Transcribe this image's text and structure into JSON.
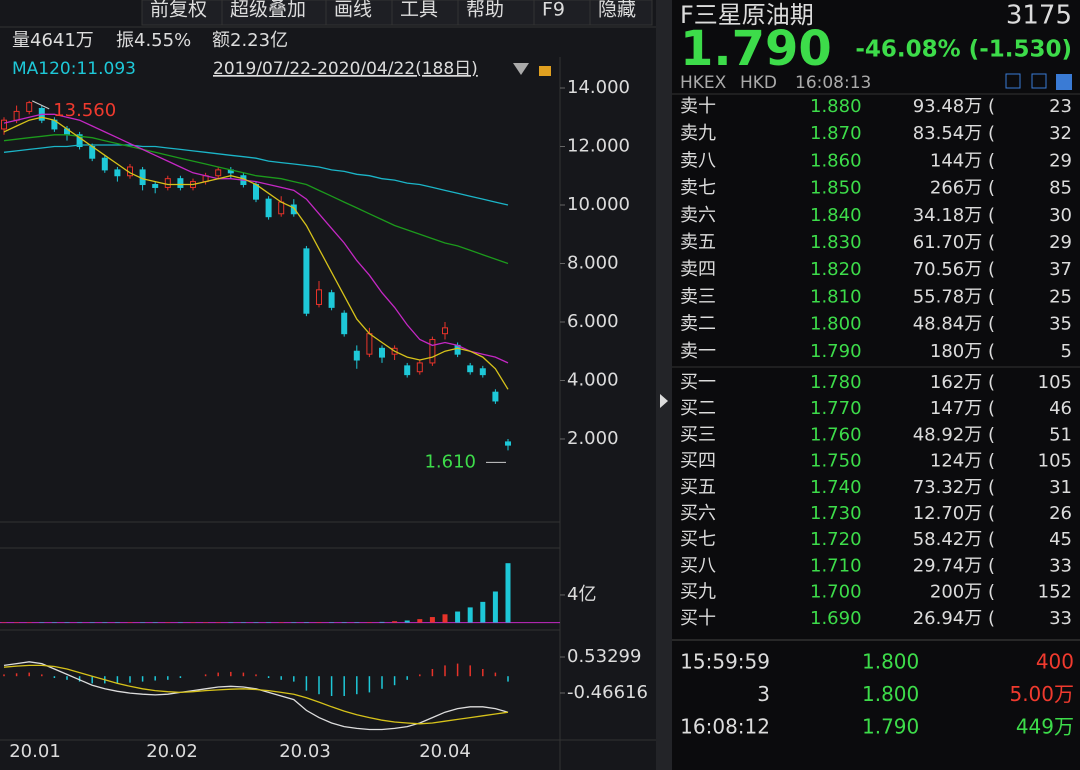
{
  "toolbar": [
    "前复权",
    "超级叠加",
    "画线",
    "工具",
    "帮助",
    "F9",
    "隐藏"
  ],
  "info": {
    "volume": "量4641万",
    "amplitude": "振4.55%",
    "amount": "额2.23亿",
    "ma_label": "MA120:11.093",
    "range": "2019/07/22-2020/04/22(188日)"
  },
  "price_chart": {
    "ylim": [
      -0.77,
      15.06
    ],
    "yticks": [
      {
        "value": 14,
        "label": "14.000"
      },
      {
        "value": 12,
        "label": "12.000"
      },
      {
        "value": 10,
        "label": "10.000"
      },
      {
        "value": 8,
        "label": "8.000"
      },
      {
        "value": 6,
        "label": "6.000"
      },
      {
        "value": 4,
        "label": "4.000"
      },
      {
        "value": 2,
        "label": "2.000"
      }
    ],
    "high_label": "13.560",
    "low_label": "1.610",
    "up_color": "#e8332a",
    "down_color": "#1ec8d8",
    "candles": [
      [
        12.6,
        12.9,
        13.0,
        12.4
      ],
      [
        12.9,
        13.2,
        13.4,
        12.8
      ],
      [
        13.2,
        13.5,
        13.56,
        13.1
      ],
      [
        13.3,
        12.9,
        13.4,
        12.8
      ],
      [
        12.9,
        12.6,
        13.0,
        12.5
      ],
      [
        12.6,
        12.4,
        12.7,
        12.2
      ],
      [
        12.4,
        12.0,
        12.5,
        11.9
      ],
      [
        12.0,
        11.6,
        12.1,
        11.5
      ],
      [
        11.6,
        11.2,
        11.7,
        11.1
      ],
      [
        11.2,
        11.0,
        11.3,
        10.8
      ],
      [
        11.0,
        11.3,
        11.4,
        10.9
      ],
      [
        11.2,
        10.7,
        11.3,
        10.5
      ],
      [
        10.7,
        10.6,
        10.8,
        10.4
      ],
      [
        10.6,
        10.9,
        11.0,
        10.5
      ],
      [
        10.9,
        10.6,
        11.0,
        10.5
      ],
      [
        10.6,
        10.8,
        10.9,
        10.5
      ],
      [
        10.8,
        11.0,
        11.1,
        10.7
      ],
      [
        11.0,
        11.2,
        11.3,
        10.9
      ],
      [
        11.2,
        11.1,
        11.3,
        10.9
      ],
      [
        11.0,
        10.7,
        11.1,
        10.6
      ],
      [
        10.7,
        10.2,
        10.8,
        10.1
      ],
      [
        10.2,
        9.6,
        10.3,
        9.5
      ],
      [
        9.7,
        10.1,
        10.3,
        9.6
      ],
      [
        10.0,
        9.7,
        10.2,
        9.6
      ],
      [
        8.5,
        6.3,
        8.6,
        6.2
      ],
      [
        6.6,
        7.1,
        7.4,
        6.5
      ],
      [
        7.0,
        6.5,
        7.1,
        6.4
      ],
      [
        6.3,
        5.6,
        6.4,
        5.5
      ],
      [
        5.0,
        4.7,
        5.2,
        4.4
      ],
      [
        4.9,
        5.6,
        5.8,
        4.8
      ],
      [
        5.1,
        4.8,
        5.2,
        4.6
      ],
      [
        4.9,
        5.1,
        5.2,
        4.7
      ],
      [
        4.5,
        4.2,
        4.6,
        4.1
      ],
      [
        4.3,
        4.6,
        4.7,
        4.2
      ],
      [
        4.6,
        5.4,
        5.5,
        4.5
      ],
      [
        5.6,
        5.8,
        6.0,
        5.4
      ],
      [
        5.2,
        4.9,
        5.3,
        4.8
      ],
      [
        4.5,
        4.3,
        4.6,
        4.2
      ],
      [
        4.4,
        4.2,
        4.5,
        4.1
      ],
      [
        3.6,
        3.3,
        3.7,
        3.2
      ],
      [
        1.9,
        1.79,
        2.0,
        1.61
      ]
    ],
    "ma": [
      {
        "color": "#1bb5c8",
        "values": [
          11.8,
          11.85,
          11.9,
          11.95,
          12.0,
          12.0,
          12.05,
          12.05,
          12.05,
          12.05,
          12.05,
          12.0,
          12.0,
          11.95,
          11.9,
          11.85,
          11.8,
          11.75,
          11.7,
          11.65,
          11.6,
          11.5,
          11.45,
          11.4,
          11.35,
          11.3,
          11.2,
          11.15,
          11.05,
          11.0,
          10.9,
          10.85,
          10.75,
          10.7,
          10.6,
          10.5,
          10.4,
          10.3,
          10.2,
          10.1,
          10.0
        ]
      },
      {
        "color": "#1c9a1c",
        "values": [
          12.2,
          12.25,
          12.3,
          12.35,
          12.4,
          12.4,
          12.35,
          12.3,
          12.2,
          12.1,
          12.0,
          11.9,
          11.8,
          11.7,
          11.6,
          11.5,
          11.4,
          11.3,
          11.2,
          11.1,
          11.0,
          10.95,
          10.9,
          10.8,
          10.7,
          10.5,
          10.3,
          10.1,
          9.9,
          9.7,
          9.5,
          9.3,
          9.15,
          9.0,
          8.85,
          8.7,
          8.6,
          8.45,
          8.3,
          8.15,
          8.0
        ]
      },
      {
        "color": "#c428c4",
        "values": [
          12.8,
          12.9,
          13.0,
          13.1,
          13.1,
          13.0,
          12.9,
          12.7,
          12.5,
          12.3,
          12.1,
          11.9,
          11.7,
          11.5,
          11.3,
          11.1,
          11.0,
          10.9,
          10.9,
          10.85,
          10.8,
          10.7,
          10.6,
          10.5,
          10.2,
          9.7,
          9.2,
          8.7,
          8.1,
          7.6,
          7.0,
          6.5,
          5.9,
          5.4,
          5.2,
          5.3,
          5.2,
          5.0,
          4.9,
          4.8,
          4.6
        ]
      },
      {
        "color": "#d6c21a",
        "values": [
          12.5,
          12.7,
          12.9,
          13.0,
          12.9,
          12.6,
          12.3,
          12.0,
          11.7,
          11.4,
          11.1,
          10.9,
          10.8,
          10.7,
          10.7,
          10.7,
          10.8,
          10.9,
          11.0,
          10.9,
          10.7,
          10.4,
          10.1,
          9.9,
          9.3,
          8.5,
          7.7,
          6.9,
          6.1,
          5.6,
          5.3,
          5.0,
          4.8,
          4.7,
          4.8,
          5.0,
          5.1,
          5.0,
          4.8,
          4.4,
          3.7
        ]
      }
    ],
    "x_labels": [
      "20.01",
      "20.02",
      "20.03",
      "20.04"
    ]
  },
  "volume_chart": {
    "ylim": [
      -0.35,
      10.8
    ],
    "yticks": [
      {
        "value": 4,
        "label": "4亿"
      }
    ],
    "values": [
      0.02,
      0.02,
      0.02,
      0.02,
      0.02,
      0.02,
      0.02,
      0.02,
      0.02,
      0.02,
      0.02,
      0.02,
      0.02,
      0.02,
      0.02,
      0.02,
      0.02,
      0.02,
      0.02,
      0.02,
      0.02,
      0.02,
      0.02,
      0.02,
      0.05,
      0.05,
      0.05,
      0.05,
      0.05,
      0.05,
      0.1,
      0.2,
      0.3,
      0.5,
      0.8,
      1.2,
      1.6,
      2.2,
      3.0,
      4.5,
      8.6
    ]
  },
  "macd_chart": {
    "ylim": [
      -1.771,
      1.227
    ],
    "yticks": [
      {
        "value": 0.53299,
        "label": "0.53299"
      },
      {
        "value": -0.46616,
        "label": "-0.46616"
      }
    ],
    "histogram": [
      0.05,
      0.08,
      0.1,
      0.05,
      -0.05,
      -0.1,
      -0.15,
      -0.2,
      -0.2,
      -0.2,
      -0.18,
      -0.15,
      -0.12,
      -0.1,
      -0.05,
      0.0,
      0.05,
      0.1,
      0.12,
      0.1,
      0.05,
      -0.05,
      -0.1,
      -0.15,
      -0.4,
      -0.5,
      -0.55,
      -0.55,
      -0.5,
      -0.45,
      -0.35,
      -0.25,
      -0.1,
      0.05,
      0.2,
      0.3,
      0.35,
      0.3,
      0.2,
      0.1,
      -0.15
    ],
    "lines": [
      {
        "color": "#dddddd",
        "values": [
          0.3,
          0.35,
          0.4,
          0.35,
          0.2,
          0.05,
          -0.1,
          -0.25,
          -0.35,
          -0.42,
          -0.47,
          -0.5,
          -0.52,
          -0.5,
          -0.45,
          -0.4,
          -0.35,
          -0.3,
          -0.28,
          -0.3,
          -0.35,
          -0.45,
          -0.55,
          -0.65,
          -0.95,
          -1.15,
          -1.3,
          -1.4,
          -1.45,
          -1.48,
          -1.48,
          -1.45,
          -1.4,
          -1.3,
          -1.15,
          -1.0,
          -0.9,
          -0.85,
          -0.85,
          -0.9,
          -1.0
        ]
      },
      {
        "color": "#d6c21a",
        "values": [
          0.25,
          0.28,
          0.3,
          0.3,
          0.27,
          0.2,
          0.1,
          0.0,
          -0.1,
          -0.2,
          -0.28,
          -0.35,
          -0.4,
          -0.43,
          -0.45,
          -0.43,
          -0.4,
          -0.38,
          -0.36,
          -0.35,
          -0.37,
          -0.4,
          -0.45,
          -0.5,
          -0.6,
          -0.72,
          -0.85,
          -0.97,
          -1.07,
          -1.15,
          -1.22,
          -1.27,
          -1.3,
          -1.32,
          -1.3,
          -1.25,
          -1.2,
          -1.15,
          -1.1,
          -1.05,
          -1.0
        ]
      }
    ]
  },
  "quote": {
    "name": "F三星原油期",
    "code": "3175",
    "price": "1.790",
    "change": "-46.08% (-1.530)",
    "exchange": "HKEX",
    "currency": "HKD",
    "time": "16:08:13"
  },
  "asks": [
    [
      "卖十",
      "1.880",
      "93.48万 (",
      "23"
    ],
    [
      "卖九",
      "1.870",
      "83.54万 (",
      "32"
    ],
    [
      "卖八",
      "1.860",
      "144万 (",
      "29"
    ],
    [
      "卖七",
      "1.850",
      "266万 (",
      "85"
    ],
    [
      "卖六",
      "1.840",
      "34.18万 (",
      "30"
    ],
    [
      "卖五",
      "1.830",
      "61.70万 (",
      "29"
    ],
    [
      "卖四",
      "1.820",
      "70.56万 (",
      "37"
    ],
    [
      "卖三",
      "1.810",
      "55.78万 (",
      "25"
    ],
    [
      "卖二",
      "1.800",
      "48.84万 (",
      "35"
    ],
    [
      "卖一",
      "1.790",
      "180万 (",
      "5"
    ]
  ],
  "bids": [
    [
      "买一",
      "1.780",
      "162万 (",
      "105"
    ],
    [
      "买二",
      "1.770",
      "147万 (",
      "46"
    ],
    [
      "买三",
      "1.760",
      "48.92万 (",
      "51"
    ],
    [
      "买四",
      "1.750",
      "124万 (",
      "105"
    ],
    [
      "买五",
      "1.740",
      "73.32万 (",
      "31"
    ],
    [
      "买六",
      "1.730",
      "12.70万 (",
      "26"
    ],
    [
      "买七",
      "1.720",
      "58.42万 (",
      "45"
    ],
    [
      "买八",
      "1.710",
      "29.74万 (",
      "33"
    ],
    [
      "买九",
      "1.700",
      "200万 (",
      "152"
    ],
    [
      "买十",
      "1.690",
      "26.94万 (",
      "33"
    ]
  ],
  "trades": [
    [
      "15:59:59",
      "1.800",
      "400"
    ],
    [
      "3",
      "1.800",
      "5.00万"
    ],
    [
      "16:08:12",
      "1.790",
      "449万"
    ]
  ]
}
